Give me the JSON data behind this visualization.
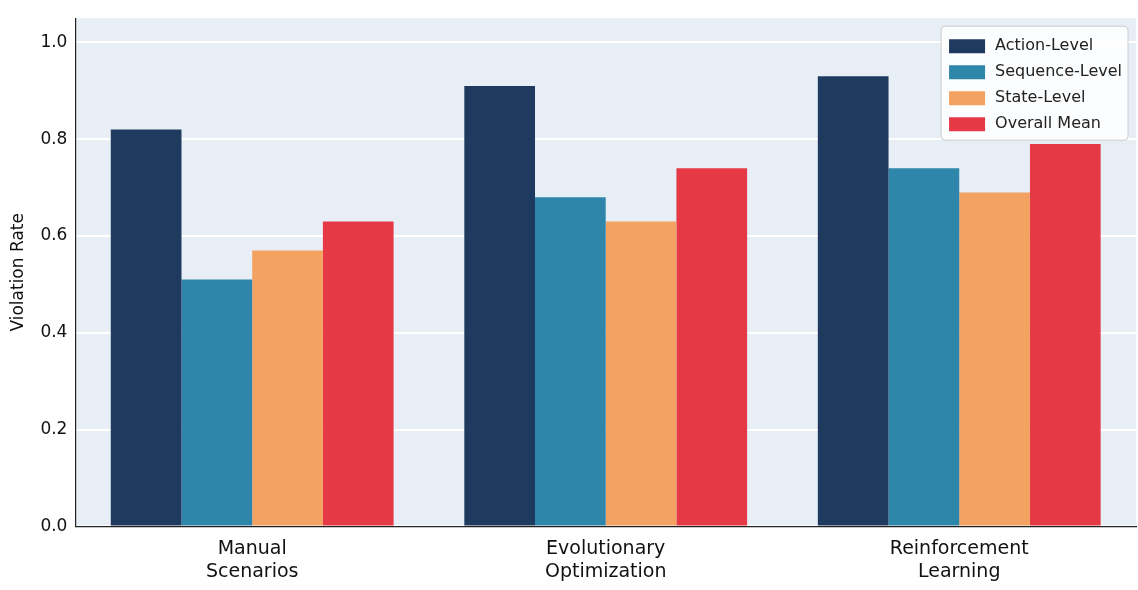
{
  "chart_data": {
    "type": "bar",
    "ylabel": "Violation Rate",
    "categories": [
      "Manual\nScenarios",
      "Evolutionary\nOptimization",
      "Reinforcement\nLearning"
    ],
    "series": [
      {
        "name": "Action-Level",
        "color": "#1f3a5f",
        "values": [
          0.82,
          0.91,
          0.93
        ]
      },
      {
        "name": "Sequence-Level",
        "color": "#2e86ab",
        "values": [
          0.51,
          0.68,
          0.74
        ]
      },
      {
        "name": "State-Level",
        "color": "#f4a261",
        "values": [
          0.57,
          0.63,
          0.69
        ]
      },
      {
        "name": "Overall Mean",
        "color": "#e63946",
        "values": [
          0.63,
          0.74,
          0.79
        ]
      }
    ],
    "ylim": [
      0,
      1.05
    ],
    "yticks": [
      {
        "value": 0,
        "label": "0.0"
      },
      0.2,
      0.4,
      0.6,
      0.8,
      {
        "value": 1,
        "label": "1.0"
      }
    ],
    "grid": "y",
    "legend": "top right"
  }
}
